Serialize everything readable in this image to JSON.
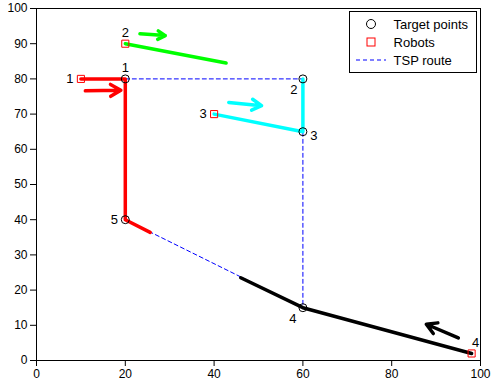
{
  "chart_data": {
    "type": "scatter",
    "xlim": [
      0,
      100
    ],
    "ylim": [
      0,
      100
    ],
    "xticks": [
      0,
      20,
      40,
      60,
      80,
      100
    ],
    "yticks": [
      0,
      10,
      20,
      30,
      40,
      50,
      60,
      70,
      80,
      90,
      100
    ],
    "legend": "northeast",
    "series": [
      {
        "name": "Target points",
        "type": "scatter",
        "marker": "circle",
        "color": "#000000",
        "x": [
          20,
          60,
          60,
          60,
          20
        ],
        "y": [
          80,
          80,
          65,
          15,
          40
        ],
        "labels": [
          "1",
          "2",
          "3",
          "4",
          "5"
        ]
      },
      {
        "name": "Robots",
        "type": "scatter",
        "marker": "square",
        "color": "#ff0000",
        "x": [
          10,
          20,
          40,
          98
        ],
        "y": [
          80,
          90,
          70,
          2
        ],
        "labels": [
          "1",
          "2",
          "3",
          "4"
        ]
      },
      {
        "name": "TSP route",
        "type": "line",
        "line_style": "dashed",
        "color": "#0000ff",
        "x": [
          20,
          60,
          60,
          60,
          20,
          20
        ],
        "y": [
          80,
          80,
          65,
          15,
          40,
          80
        ]
      }
    ],
    "paths": [
      {
        "color": "#ff0000",
        "x": [
          10,
          20,
          20,
          25.6
        ],
        "y": [
          80,
          80,
          40,
          36.4
        ]
      },
      {
        "color": "#00ff00",
        "x": [
          20,
          42.7
        ],
        "y": [
          90,
          84.5
        ]
      },
      {
        "color": "#00ffff",
        "x": [
          40,
          60,
          60
        ],
        "y": [
          70,
          65,
          80
        ]
      },
      {
        "color": "#000000",
        "x": [
          46,
          60,
          98
        ],
        "y": [
          23.5,
          15,
          2
        ]
      }
    ],
    "arrows": [
      {
        "color": "#ff0000",
        "x": [
          11,
          19
        ],
        "y": [
          76.6,
          76.8
        ]
      },
      {
        "color": "#00ff00",
        "x": [
          23.3,
          29
        ],
        "y": [
          92.8,
          92.3
        ]
      },
      {
        "color": "#00ffff",
        "x": [
          43.3,
          50.7
        ],
        "y": [
          73.3,
          72.4
        ]
      },
      {
        "color": "#000000",
        "x": [
          95,
          87.8
        ],
        "y": [
          6.4,
          10.3
        ]
      }
    ]
  }
}
